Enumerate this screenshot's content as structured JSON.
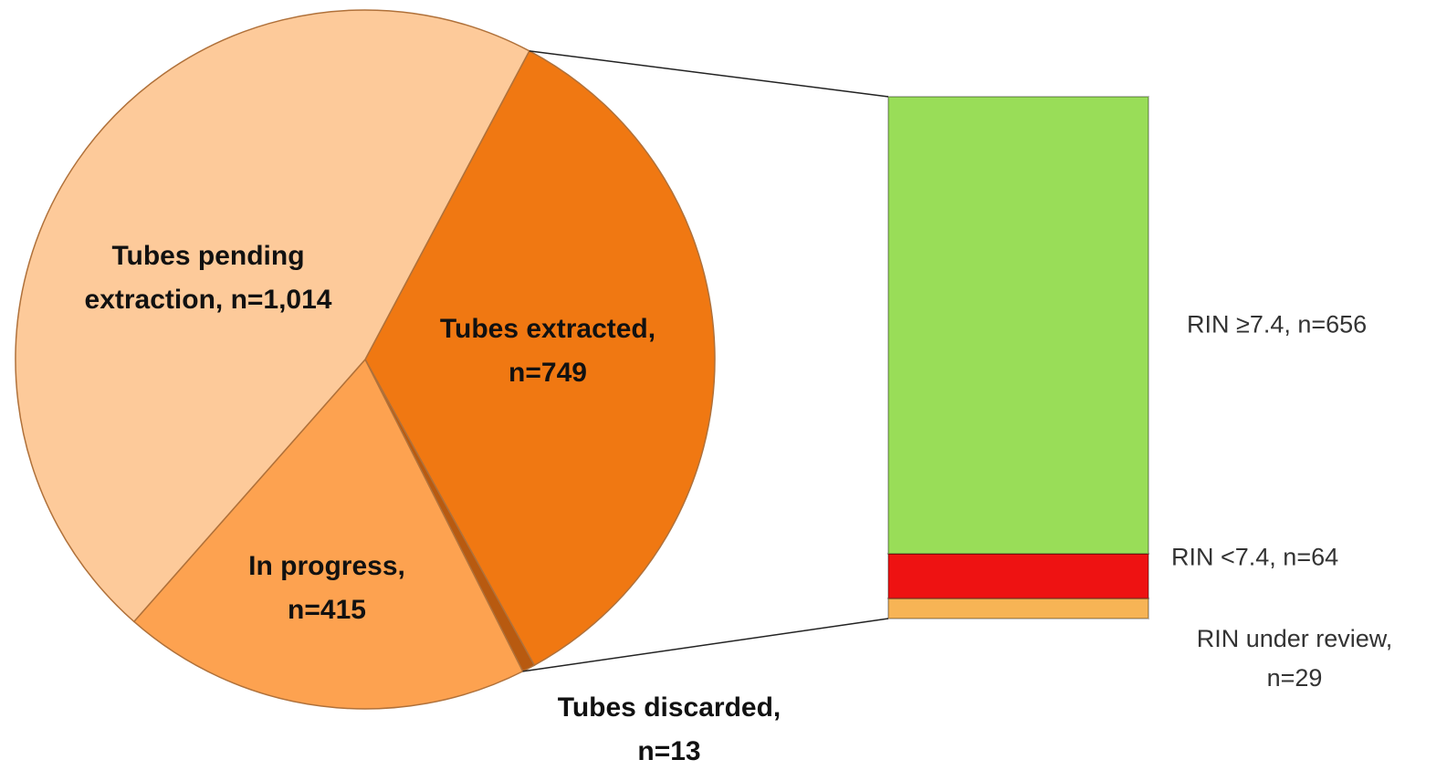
{
  "chart_data": {
    "type": "pie-of-bar",
    "pie": {
      "values": [
        749,
        13,
        415,
        1014
      ],
      "value_labels": [
        "Tubes extracted, n=749",
        "Tubes discarded, n=13",
        "In progress, n=415",
        "Tubes pending extraction, n=1,014"
      ],
      "colors": [
        "#f07812",
        "#b85a10",
        "#fda250",
        "#fdca9a"
      ]
    },
    "bar": {
      "values": [
        656,
        64,
        29
      ],
      "value_labels": [
        "RIN ≥7.4, n=656",
        "RIN <7.4, n=64",
        "RIN under review, n=29"
      ],
      "colors": [
        "#99dd58",
        "#ee1212",
        "#f7b455"
      ]
    }
  }
}
